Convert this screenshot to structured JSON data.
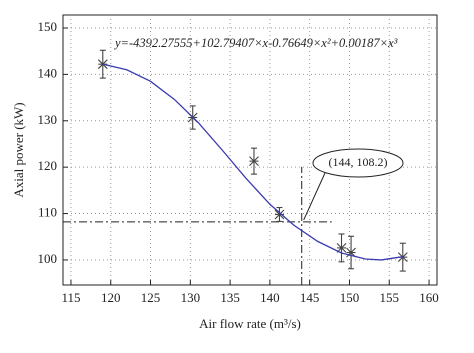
{
  "chart_data": {
    "type": "scatter",
    "equation": "y=-4392.27555+102.79407×x-0.76649×x²+0.00187×x³",
    "xlabel": "Air flow rate (m³/s)",
    "ylabel": "Axial power (kW)",
    "xlim": [
      114,
      161
    ],
    "ylim": [
      94.6,
      152.8
    ],
    "xticks": [
      115,
      120,
      125,
      130,
      135,
      140,
      145,
      150,
      155,
      160
    ],
    "yticks": [
      100,
      110,
      120,
      130,
      140,
      150
    ],
    "grid": true,
    "series": [
      {
        "type": "scatter",
        "color": "#444444",
        "x": [
          119,
          130.3,
          138,
          141.2,
          149,
          150.2,
          156.7
        ],
        "values": [
          142.2,
          130.7,
          121.3,
          109.8,
          102.6,
          101.6,
          100.6
        ],
        "errors": [
          3,
          2.5,
          2.8,
          1.5,
          3,
          3.5,
          3
        ]
      },
      {
        "type": "line",
        "color": "#3b3bb0",
        "x": [
          119,
          122,
          125,
          128,
          131,
          134,
          137,
          140,
          143,
          146,
          149,
          152,
          154,
          156.7
        ],
        "values": [
          142.2,
          141,
          138.5,
          134.6,
          129.6,
          123.7,
          117.6,
          112,
          107.5,
          104,
          101.5,
          100.2,
          100,
          100.7
        ]
      }
    ],
    "annotation": {
      "text": "(144, 108.2)",
      "x": 144,
      "y": 108.2
    }
  }
}
